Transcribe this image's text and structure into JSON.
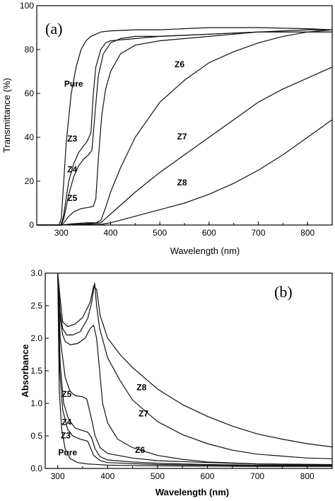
{
  "chart_data": [
    {
      "type": "line",
      "panel_label": "(a)",
      "xlabel": "Wavelength (nm)",
      "ylabel": "Transmittance (%)",
      "xlim": [
        250,
        850
      ],
      "ylim": [
        0,
        100
      ],
      "xticks": [
        300,
        400,
        500,
        600,
        700,
        800
      ],
      "yticks": [
        0,
        20,
        40,
        60,
        80,
        100
      ],
      "grid": false,
      "series": [
        {
          "name": "Pure",
          "label_pos": [
            325,
            63
          ],
          "points": [
            [
              250,
              0
            ],
            [
              295,
              0
            ],
            [
              300,
              3
            ],
            [
              310,
              38
            ],
            [
              320,
              60
            ],
            [
              330,
              72
            ],
            [
              340,
              80
            ],
            [
              350,
              84
            ],
            [
              360,
              86
            ],
            [
              370,
              87
            ],
            [
              380,
              88
            ],
            [
              400,
              88.5
            ],
            [
              450,
              89
            ],
            [
              500,
              89
            ],
            [
              600,
              90
            ],
            [
              700,
              90
            ],
            [
              800,
              89.5
            ],
            [
              850,
              89
            ]
          ]
        },
        {
          "name": "Z3",
          "label_pos": [
            322,
            38
          ],
          "points": [
            [
              250,
              0
            ],
            [
              300,
              0
            ],
            [
              305,
              5
            ],
            [
              315,
              20
            ],
            [
              325,
              28
            ],
            [
              335,
              33
            ],
            [
              345,
              36
            ],
            [
              352,
              38
            ],
            [
              360,
              42
            ],
            [
              365,
              60
            ],
            [
              370,
              72
            ],
            [
              380,
              80
            ],
            [
              390,
              83
            ],
            [
              400,
              84
            ],
            [
              450,
              85
            ],
            [
              500,
              86
            ],
            [
              600,
              87
            ],
            [
              700,
              88
            ],
            [
              800,
              88
            ],
            [
              850,
              88
            ]
          ]
        },
        {
          "name": "Z4",
          "label_pos": [
            322,
            24
          ],
          "points": [
            [
              250,
              0
            ],
            [
              300,
              0
            ],
            [
              305,
              3
            ],
            [
              315,
              14
            ],
            [
              325,
              22
            ],
            [
              335,
              27
            ],
            [
              345,
              30
            ],
            [
              355,
              32
            ],
            [
              362,
              34
            ],
            [
              368,
              50
            ],
            [
              375,
              68
            ],
            [
              385,
              78
            ],
            [
              400,
              83
            ],
            [
              420,
              85
            ],
            [
              450,
              86
            ],
            [
              500,
              86
            ],
            [
              600,
              87
            ],
            [
              700,
              88
            ],
            [
              800,
              88
            ],
            [
              850,
              88
            ]
          ]
        },
        {
          "name": "Z5",
          "label_pos": [
            322,
            11
          ],
          "points": [
            [
              250,
              0
            ],
            [
              300,
              0
            ],
            [
              305,
              1
            ],
            [
              315,
              4
            ],
            [
              325,
              6
            ],
            [
              340,
              7.5
            ],
            [
              355,
              8
            ],
            [
              365,
              8.5
            ],
            [
              370,
              12
            ],
            [
              375,
              30
            ],
            [
              382,
              50
            ],
            [
              390,
              62
            ],
            [
              400,
              70
            ],
            [
              420,
              78
            ],
            [
              450,
              82
            ],
            [
              500,
              84
            ],
            [
              550,
              85
            ],
            [
              600,
              86
            ],
            [
              700,
              88
            ],
            [
              800,
              89
            ],
            [
              850,
              89
            ]
          ]
        },
        {
          "name": "Z6",
          "label_pos": [
            540,
            72
          ],
          "points": [
            [
              250,
              0
            ],
            [
              300,
              0
            ],
            [
              320,
              0.5
            ],
            [
              350,
              1
            ],
            [
              370,
              1
            ],
            [
              380,
              2
            ],
            [
              390,
              8
            ],
            [
              400,
              15
            ],
            [
              420,
              26
            ],
            [
              450,
              40
            ],
            [
              500,
              56
            ],
            [
              550,
              66
            ],
            [
              600,
              74
            ],
            [
              650,
              79
            ],
            [
              700,
              83
            ],
            [
              750,
              86
            ],
            [
              800,
              88
            ],
            [
              850,
              89
            ]
          ]
        },
        {
          "name": "Z7",
          "label_pos": [
            545,
            39
          ],
          "points": [
            [
              250,
              0
            ],
            [
              300,
              0
            ],
            [
              350,
              0.5
            ],
            [
              380,
              1
            ],
            [
              390,
              3
            ],
            [
              400,
              5
            ],
            [
              425,
              10
            ],
            [
              450,
              15
            ],
            [
              500,
              24
            ],
            [
              550,
              32
            ],
            [
              600,
              40
            ],
            [
              650,
              48
            ],
            [
              700,
              56
            ],
            [
              750,
              62
            ],
            [
              800,
              67
            ],
            [
              850,
              72
            ]
          ]
        },
        {
          "name": "Z8",
          "label_pos": [
            545,
            18
          ],
          "points": [
            [
              250,
              0
            ],
            [
              300,
              0
            ],
            [
              350,
              0.3
            ],
            [
              380,
              0.3
            ],
            [
              400,
              1
            ],
            [
              450,
              4
            ],
            [
              500,
              7
            ],
            [
              550,
              10
            ],
            [
              600,
              14
            ],
            [
              650,
              19
            ],
            [
              700,
              25
            ],
            [
              750,
              32
            ],
            [
              800,
              40
            ],
            [
              850,
              48
            ]
          ]
        }
      ]
    },
    {
      "type": "line",
      "panel_label": "(b)",
      "xlabel": "Wavelength (nm)",
      "ylabel": "Absorbance",
      "xlim": [
        275,
        850
      ],
      "ylim": [
        0,
        3.0
      ],
      "xticks": [
        300,
        400,
        500,
        600,
        700,
        800
      ],
      "yticks": [
        0.0,
        0.5,
        1.0,
        1.5,
        2.0,
        2.5,
        3.0
      ],
      "ytick_labels": [
        "0.0",
        "0.5",
        "1.0",
        "1.5",
        "2.0",
        "2.5",
        "3.0"
      ],
      "grid": false,
      "series": [
        {
          "name": "Pure",
          "label_pos": [
            320,
            0.2
          ],
          "points": [
            [
              300,
              3.0
            ],
            [
              303,
              1.2
            ],
            [
              308,
              0.6
            ],
            [
              315,
              0.3
            ],
            [
              325,
              0.15
            ],
            [
              340,
              0.09
            ],
            [
              360,
              0.07
            ],
            [
              400,
              0.05
            ],
            [
              500,
              0.04
            ],
            [
              600,
              0.035
            ],
            [
              700,
              0.03
            ],
            [
              850,
              0.03
            ]
          ]
        },
        {
          "name": "Z3",
          "label_pos": [
            316,
            0.46
          ],
          "points": [
            [
              300,
              3.0
            ],
            [
              304,
              1.5
            ],
            [
              310,
              0.9
            ],
            [
              320,
              0.6
            ],
            [
              330,
              0.5
            ],
            [
              345,
              0.45
            ],
            [
              360,
              0.42
            ],
            [
              365,
              0.33
            ],
            [
              372,
              0.2
            ],
            [
              385,
              0.12
            ],
            [
              400,
              0.09
            ],
            [
              500,
              0.06
            ],
            [
              600,
              0.05
            ],
            [
              700,
              0.04
            ],
            [
              850,
              0.04
            ]
          ]
        },
        {
          "name": "Z4",
          "label_pos": [
            318,
            0.67
          ],
          "points": [
            [
              300,
              3.0
            ],
            [
              305,
              1.6
            ],
            [
              312,
              1.0
            ],
            [
              322,
              0.75
            ],
            [
              335,
              0.62
            ],
            [
              350,
              0.58
            ],
            [
              360,
              0.56
            ],
            [
              368,
              0.47
            ],
            [
              375,
              0.3
            ],
            [
              385,
              0.18
            ],
            [
              400,
              0.13
            ],
            [
              450,
              0.1
            ],
            [
              500,
              0.08
            ],
            [
              600,
              0.06
            ],
            [
              700,
              0.05
            ],
            [
              850,
              0.05
            ]
          ]
        },
        {
          "name": "Z5",
          "label_pos": [
            318,
            1.1
          ],
          "points": [
            [
              300,
              3.0
            ],
            [
              305,
              2.0
            ],
            [
              315,
              1.4
            ],
            [
              325,
              1.18
            ],
            [
              335,
              1.12
            ],
            [
              350,
              1.1
            ],
            [
              358,
              1.07
            ],
            [
              362,
              0.95
            ],
            [
              368,
              0.75
            ],
            [
              375,
              0.5
            ],
            [
              385,
              0.32
            ],
            [
              400,
              0.23
            ],
            [
              450,
              0.16
            ],
            [
              500,
              0.12
            ],
            [
              600,
              0.09
            ],
            [
              700,
              0.07
            ],
            [
              850,
              0.06
            ]
          ]
        },
        {
          "name": "Z6",
          "label_pos": [
            465,
            0.24
          ],
          "points": [
            [
              300,
              3.0
            ],
            [
              305,
              2.3
            ],
            [
              310,
              2.05
            ],
            [
              315,
              1.95
            ],
            [
              325,
              1.9
            ],
            [
              340,
              1.92
            ],
            [
              355,
              2.0
            ],
            [
              365,
              2.15
            ],
            [
              372,
              2.2
            ],
            [
              378,
              2.0
            ],
            [
              384,
              1.5
            ],
            [
              390,
              1.0
            ],
            [
              400,
              0.7
            ],
            [
              420,
              0.45
            ],
            [
              450,
              0.32
            ],
            [
              500,
              0.2
            ],
            [
              550,
              0.14
            ],
            [
              600,
              0.1
            ],
            [
              700,
              0.07
            ],
            [
              850,
              0.05
            ]
          ]
        },
        {
          "name": "Z7",
          "label_pos": [
            472,
            0.8
          ],
          "points": [
            [
              300,
              3.0
            ],
            [
              305,
              2.4
            ],
            [
              310,
              2.15
            ],
            [
              318,
              2.05
            ],
            [
              330,
              2.05
            ],
            [
              345,
              2.1
            ],
            [
              360,
              2.3
            ],
            [
              368,
              2.55
            ],
            [
              374,
              2.85
            ],
            [
              378,
              2.5
            ],
            [
              384,
              2.15
            ],
            [
              400,
              1.7
            ],
            [
              425,
              1.35
            ],
            [
              450,
              1.05
            ],
            [
              500,
              0.72
            ],
            [
              550,
              0.52
            ],
            [
              600,
              0.38
            ],
            [
              650,
              0.28
            ],
            [
              700,
              0.22
            ],
            [
              800,
              0.16
            ],
            [
              850,
              0.15
            ]
          ]
        },
        {
          "name": "Z8",
          "label_pos": [
            468,
            1.2
          ],
          "points": [
            [
              300,
              3.0
            ],
            [
              305,
              2.6
            ],
            [
              310,
              2.25
            ],
            [
              320,
              2.18
            ],
            [
              335,
              2.22
            ],
            [
              350,
              2.32
            ],
            [
              365,
              2.55
            ],
            [
              372,
              2.8
            ],
            [
              378,
              2.75
            ],
            [
              385,
              2.35
            ],
            [
              400,
              2.0
            ],
            [
              425,
              1.75
            ],
            [
              450,
              1.55
            ],
            [
              500,
              1.22
            ],
            [
              550,
              0.98
            ],
            [
              600,
              0.8
            ],
            [
              650,
              0.65
            ],
            [
              700,
              0.53
            ],
            [
              750,
              0.45
            ],
            [
              800,
              0.38
            ],
            [
              850,
              0.33
            ]
          ]
        }
      ]
    }
  ]
}
